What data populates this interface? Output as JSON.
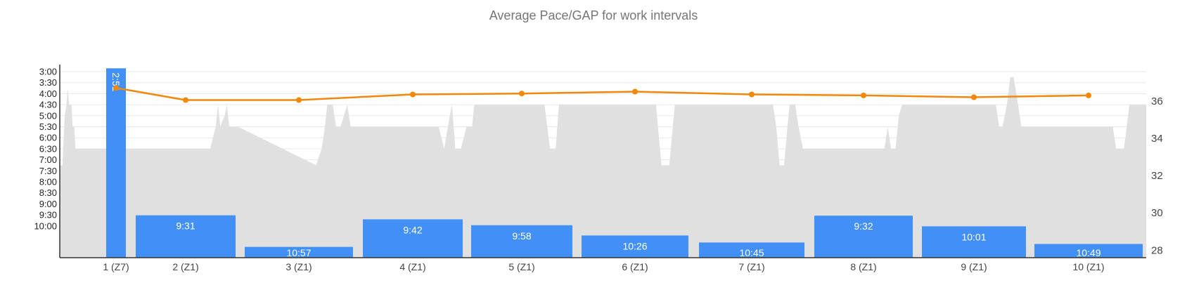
{
  "chart_data": {
    "type": "bar",
    "title": "Average Pace/GAP for work intervals",
    "categories": [
      "1 (Z7)",
      "2 (Z1)",
      "3 (Z1)",
      "4 (Z1)",
      "5 (Z1)",
      "6 (Z1)",
      "7 (Z1)",
      "8 (Z1)",
      "9 (Z1)",
      "10 (Z1)"
    ],
    "series": [
      {
        "kind": "bar",
        "axis": "left",
        "unit": "min/mi",
        "labels": [
          "2:51",
          "9:31",
          "10:57",
          "9:42",
          "9:58",
          "10:26",
          "10:45",
          "9:32",
          "10:01",
          "10:49"
        ],
        "values": [
          2.85,
          9.517,
          10.95,
          9.7,
          9.967,
          10.433,
          10.75,
          9.533,
          10.017,
          10.817
        ],
        "color": "#4290f5"
      },
      {
        "kind": "line",
        "axis": "right",
        "values": [
          36.7,
          36.05,
          36.05,
          36.35,
          36.4,
          36.5,
          36.35,
          36.3,
          36.2,
          36.3
        ],
        "color": "#f0880a"
      },
      {
        "kind": "area",
        "axis": "left",
        "color": "#e0e0e0",
        "points": [
          [
            0.0,
            7.25
          ],
          [
            0.025,
            7.25
          ],
          [
            0.03,
            6.5
          ],
          [
            0.045,
            5.0
          ],
          [
            0.06,
            4.5
          ],
          [
            0.07,
            3.75
          ],
          [
            0.085,
            4.5
          ],
          [
            0.105,
            4.5
          ],
          [
            0.115,
            5.5
          ],
          [
            0.13,
            5.5
          ],
          [
            0.14,
            6.5
          ],
          [
            0.5,
            6.5
          ],
          [
            1.35,
            6.5
          ],
          [
            1.4,
            5.5
          ],
          [
            1.42,
            4.5
          ],
          [
            1.44,
            5.5
          ],
          [
            1.48,
            5.0
          ],
          [
            1.5,
            4.5
          ],
          [
            1.52,
            5.5
          ],
          [
            1.6,
            5.5
          ],
          [
            2.3,
            7.25
          ],
          [
            2.35,
            6.5
          ],
          [
            2.38,
            5.5
          ],
          [
            2.4,
            4.5
          ],
          [
            2.45,
            4.5
          ],
          [
            2.48,
            5.5
          ],
          [
            2.52,
            5.5
          ],
          [
            2.55,
            5.0
          ],
          [
            2.58,
            4.5
          ],
          [
            2.61,
            5.5
          ],
          [
            3.4,
            5.5
          ],
          [
            3.45,
            6.5
          ],
          [
            3.5,
            5.0
          ],
          [
            3.52,
            4.5
          ],
          [
            3.55,
            6.5
          ],
          [
            3.6,
            6.5
          ],
          [
            3.65,
            5.5
          ],
          [
            3.7,
            5.5
          ],
          [
            3.72,
            4.5
          ],
          [
            4.35,
            4.5
          ],
          [
            4.4,
            6.5
          ],
          [
            4.45,
            6.5
          ],
          [
            4.48,
            4.5
          ],
          [
            5.35,
            4.5
          ],
          [
            5.4,
            7.25
          ],
          [
            5.47,
            7.25
          ],
          [
            5.52,
            4.5
          ],
          [
            6.4,
            4.5
          ],
          [
            6.43,
            5.5
          ],
          [
            6.46,
            7.25
          ],
          [
            6.5,
            7.25
          ],
          [
            6.53,
            5.5
          ],
          [
            6.55,
            4.5
          ],
          [
            6.6,
            4.5
          ],
          [
            6.63,
            5.5
          ],
          [
            6.67,
            6.5
          ],
          [
            7.4,
            6.5
          ],
          [
            7.43,
            5.5
          ],
          [
            7.46,
            6.5
          ],
          [
            7.5,
            6.5
          ],
          [
            7.53,
            5.0
          ],
          [
            7.56,
            4.5
          ],
          [
            8.4,
            4.5
          ],
          [
            8.43,
            5.5
          ],
          [
            8.46,
            5.5
          ],
          [
            8.5,
            4.5
          ],
          [
            8.53,
            3.25
          ],
          [
            8.56,
            3.25
          ],
          [
            8.6,
            4.5
          ],
          [
            8.63,
            5.5
          ],
          [
            9.45,
            5.5
          ],
          [
            9.48,
            6.5
          ],
          [
            9.55,
            6.5
          ],
          [
            9.6,
            4.5
          ],
          [
            9.75,
            4.5
          ]
        ]
      }
    ],
    "y_left": {
      "ticks": [
        "3:00",
        "3:30",
        "4:00",
        "4:30",
        "5:00",
        "5:30",
        "6:00",
        "6:30",
        "7:00",
        "7:30",
        "8:00",
        "8:30",
        "9:00",
        "9:30",
        "10:00"
      ],
      "reversed": true
    },
    "y_right": {
      "ticks": [
        "28",
        "30",
        "32",
        "34",
        "36"
      ],
      "range": [
        27.6,
        37.8
      ]
    },
    "grid": true,
    "legend": "none"
  }
}
